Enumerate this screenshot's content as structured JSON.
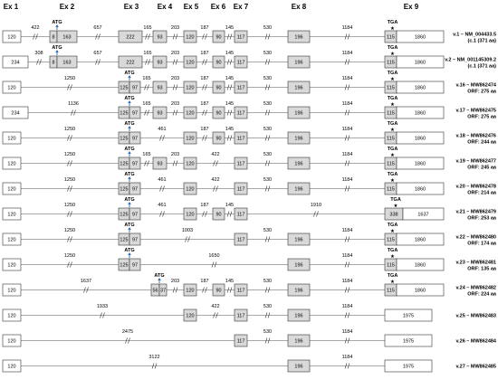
{
  "exon_headers": [
    "Ex 1",
    "Ex 2",
    "Ex 3",
    "Ex 4",
    "Ex 5",
    "Ex 6",
    "Ex 7",
    "Ex 8",
    "Ex 9"
  ],
  "legend_colors": {
    "coding": "#d9d9d9",
    "utr": "#ffffff",
    "line": "#555555",
    "arrow": "#2e6fb5"
  },
  "variants": [
    {
      "label1": "v.1 – NM_004433.5",
      "label2": "(c.1 (371 aa)",
      "introns": [
        "422",
        "657",
        "165",
        "203",
        "187",
        "145",
        "530",
        "1184"
      ],
      "exons": [
        [
          "120"
        ],
        [
          "8",
          "163"
        ],
        [
          "222"
        ],
        [
          "93"
        ],
        [
          "120"
        ],
        [
          "90"
        ],
        [
          "117"
        ],
        [
          "196"
        ],
        [
          "115",
          "1860"
        ]
      ]
    },
    {
      "label1": "v.2 – NM_001145309.2",
      "label2": "(c.1 (371 aa)",
      "introns": [
        "308",
        "657",
        "165",
        "203",
        "187",
        "145",
        "530",
        "1184"
      ],
      "exons": [
        [
          "234"
        ],
        [
          "8",
          "163"
        ],
        [
          "222"
        ],
        [
          "93"
        ],
        [
          "120"
        ],
        [
          "90"
        ],
        [
          "117"
        ],
        [
          "196"
        ],
        [
          "115",
          "1860"
        ]
      ]
    },
    {
      "label1": "v.16 – MW862474",
      "label2": "ORF: 275 aa",
      "introns": [
        "1250",
        "165",
        "203",
        "187",
        "145",
        "530",
        "1184"
      ],
      "exons": [
        [
          "120"
        ],
        [
          "125",
          "97"
        ],
        [
          "93"
        ],
        [
          "120"
        ],
        [
          "90"
        ],
        [
          "117"
        ],
        [
          "196"
        ],
        [
          "115",
          "1860"
        ]
      ]
    },
    {
      "label1": "v.17 – MW862475",
      "label2": "ORF: 275 aa",
      "introns": [
        "1136",
        "165",
        "203",
        "187",
        "145",
        "530",
        "1184"
      ],
      "exons": [
        [
          "234"
        ],
        [
          "125",
          "97"
        ],
        [
          "93"
        ],
        [
          "120"
        ],
        [
          "90"
        ],
        [
          "117"
        ],
        [
          "196"
        ],
        [
          "115",
          "1860"
        ]
      ]
    },
    {
      "label1": "v.18 – MW862476",
      "label2": "ORF: 244 aa",
      "introns": [
        "1250",
        "461",
        "187",
        "145",
        "530",
        "1184"
      ],
      "exons": [
        [
          "120"
        ],
        [
          "125",
          "97"
        ],
        [
          "120"
        ],
        [
          "90"
        ],
        [
          "117"
        ],
        [
          "196"
        ],
        [
          "115",
          "1860"
        ]
      ]
    },
    {
      "label1": "v.19 – MW862477",
      "label2": "ORF: 245 aa",
      "introns": [
        "1250",
        "165",
        "203",
        "422",
        "530",
        "1184"
      ],
      "exons": [
        [
          "120"
        ],
        [
          "125",
          "97"
        ],
        [
          "93"
        ],
        [
          "120"
        ],
        [
          "117"
        ],
        [
          "196"
        ],
        [
          "115",
          "1860"
        ]
      ]
    },
    {
      "label1": "v.20 – MW862478",
      "label2": "ORF: 214 aa",
      "introns": [
        "1250",
        "461",
        "422",
        "530",
        "1184"
      ],
      "exons": [
        [
          "120"
        ],
        [
          "125",
          "97"
        ],
        [
          "120"
        ],
        [
          "117"
        ],
        [
          "196"
        ],
        [
          "115",
          "1860"
        ]
      ]
    },
    {
      "label1": "v.21 – MW862479",
      "label2": "ORF: 253 aa",
      "introns": [
        "1250",
        "461",
        "187",
        "145",
        "1910"
      ],
      "exons": [
        [
          "120"
        ],
        [
          "125",
          "97"
        ],
        [
          "120"
        ],
        [
          "90"
        ],
        [
          "117"
        ],
        [
          "338",
          "1637"
        ]
      ]
    },
    {
      "label1": "v.22 – MW862480",
      "label2": "ORF: 174 aa",
      "introns": [
        "1250",
        "1003",
        "530",
        "1184"
      ],
      "exons": [
        [
          "120"
        ],
        [
          "125",
          "97"
        ],
        [
          "117"
        ],
        [
          "196"
        ],
        [
          "115",
          "1860"
        ]
      ]
    },
    {
      "label1": "v.23 – MW862481",
      "label2": "ORF: 135 aa",
      "introns": [
        "1250",
        "1650",
        "1184"
      ],
      "exons": [
        [
          "120"
        ],
        [
          "125",
          "97"
        ],
        [
          "196"
        ],
        [
          "115",
          "1860"
        ]
      ]
    },
    {
      "label1": "v.24 – MW862482",
      "label2": "ORF: 224 aa",
      "introns": [
        "1637",
        "203",
        "187",
        "145",
        "530",
        "1184"
      ],
      "exons": [
        [
          "120"
        ],
        [
          "56",
          "37"
        ],
        [
          "120"
        ],
        [
          "90"
        ],
        [
          "117"
        ],
        [
          "196"
        ],
        [
          "115",
          "1860"
        ]
      ]
    },
    {
      "label1": "v.25 – MW862483",
      "label2": "",
      "introns": [
        "1933",
        "422",
        "530",
        "1184"
      ],
      "exons": [
        [
          "120"
        ],
        [
          "120"
        ],
        [
          "117"
        ],
        [
          "196"
        ],
        [
          "1975"
        ]
      ]
    },
    {
      "label1": "v.26 – MW862484",
      "label2": "",
      "introns": [
        "2475",
        "530",
        "1184"
      ],
      "exons": [
        [
          "120"
        ],
        [
          "117"
        ],
        [
          "196"
        ],
        [
          "1975"
        ]
      ]
    },
    {
      "label1": "v.27 – MW862485",
      "label2": "",
      "introns": [
        "3122",
        "1184"
      ],
      "exons": [
        [
          "120"
        ],
        [
          "196"
        ],
        [
          "1975"
        ]
      ]
    }
  ],
  "codons": {
    "start": "ATG",
    "stop": "TGA"
  }
}
